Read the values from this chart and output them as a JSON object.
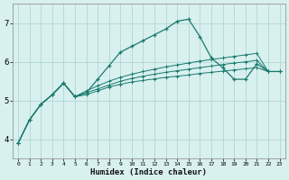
{
  "xlabel": "Humidex (Indice chaleur)",
  "bg_color": "#d8f0ee",
  "grid_color": "#b0d8d4",
  "line_color": "#1a7a6e",
  "xlim": [
    -0.5,
    23.5
  ],
  "ylim": [
    3.5,
    7.5
  ],
  "yticks": [
    4,
    5,
    6,
    7
  ],
  "xticks": [
    0,
    1,
    2,
    3,
    4,
    5,
    6,
    7,
    8,
    9,
    10,
    11,
    12,
    13,
    14,
    15,
    16,
    17,
    18,
    19,
    20,
    21,
    22,
    23
  ],
  "series": {
    "main": [
      3.9,
      4.5,
      4.9,
      5.15,
      5.45,
      5.1,
      5.2,
      5.55,
      5.9,
      6.25,
      6.4,
      6.55,
      6.7,
      6.85,
      7.05,
      7.1,
      6.65,
      6.1,
      5.85,
      5.55,
      5.55,
      5.95,
      5.75,
      5.75
    ],
    "reg1": [
      3.9,
      4.5,
      4.9,
      5.15,
      5.45,
      5.1,
      5.15,
      5.25,
      5.35,
      5.42,
      5.48,
      5.52,
      5.56,
      5.6,
      5.63,
      5.66,
      5.7,
      5.73,
      5.76,
      5.79,
      5.82,
      5.85,
      5.75,
      5.75
    ],
    "reg2": [
      3.9,
      4.5,
      4.9,
      5.15,
      5.45,
      5.1,
      5.2,
      5.3,
      5.4,
      5.5,
      5.57,
      5.63,
      5.68,
      5.73,
      5.77,
      5.81,
      5.85,
      5.89,
      5.93,
      5.97,
      6.0,
      6.04,
      5.75,
      5.75
    ],
    "reg3": [
      3.9,
      4.5,
      4.9,
      5.15,
      5.45,
      5.1,
      5.25,
      5.38,
      5.5,
      5.6,
      5.68,
      5.75,
      5.81,
      5.87,
      5.92,
      5.97,
      6.02,
      6.06,
      6.1,
      6.14,
      6.18,
      6.22,
      5.75,
      5.75
    ]
  }
}
